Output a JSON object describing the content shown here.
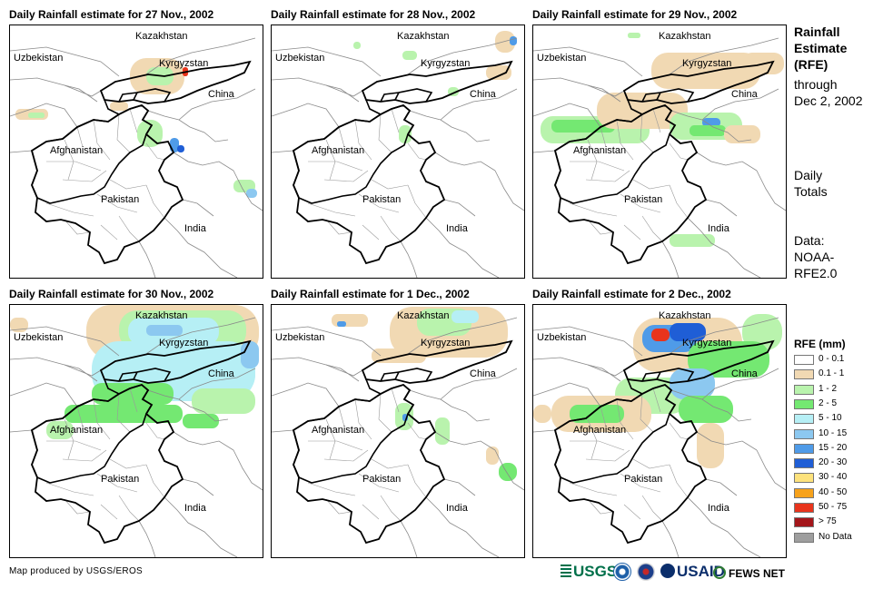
{
  "panels": [
    {
      "title": "Daily Rainfall estimate for 27 Nov., 2002",
      "intensity": "low"
    },
    {
      "title": "Daily Rainfall estimate for 28 Nov., 2002",
      "intensity": "minimal"
    },
    {
      "title": "Daily Rainfall estimate for 29 Nov., 2002",
      "intensity": "medium"
    },
    {
      "title": "Daily Rainfall estimate for 30 Nov., 2002",
      "intensity": "high"
    },
    {
      "title": "Daily Rainfall estimate for 1 Dec., 2002",
      "intensity": "low-medium"
    },
    {
      "title": "Daily Rainfall estimate for 2 Dec., 2002",
      "intensity": "medium-high"
    }
  ],
  "country_labels": {
    "kazakhstan": "Kazakhstan",
    "uzbekistan": "Uzbekistan",
    "kyrgyzstan": "Kyrgyzstan",
    "china": "China",
    "afghanistan": "Afghanistan",
    "pakistan": "Pakistan",
    "india": "India"
  },
  "side": {
    "title_lines": [
      "Rainfall",
      "Estimate",
      "(RFE)"
    ],
    "through_lines": [
      "through",
      "Dec 2, 2002"
    ],
    "daily_lines": [
      "Daily",
      "Totals"
    ],
    "data_lines": [
      "Data:",
      "NOAA-",
      "RFE2.0"
    ]
  },
  "legend": {
    "title": "RFE (mm)",
    "items": [
      {
        "label": "0 - 0.1",
        "color": "#ffffff"
      },
      {
        "label": "0.1 - 1",
        "color": "#f1d9b3"
      },
      {
        "label": "1 - 2",
        "color": "#b9f3ad"
      },
      {
        "label": "2 - 5",
        "color": "#74e872"
      },
      {
        "label": "5 - 10",
        "color": "#b6eff5"
      },
      {
        "label": "10 - 15",
        "color": "#8cc8f0"
      },
      {
        "label": "15 - 20",
        "color": "#4f9be8"
      },
      {
        "label": "20 - 30",
        "color": "#1f5ed6"
      },
      {
        "label": "30 - 40",
        "color": "#fde27c"
      },
      {
        "label": "40 - 50",
        "color": "#f7a21b"
      },
      {
        "label": "50 - 75",
        "color": "#e8341c"
      },
      {
        "label": "> 75",
        "color": "#a4161a"
      },
      {
        "label": "No Data",
        "color": "#9e9e9e"
      }
    ]
  },
  "credit": "Map produced by USGS/EROS",
  "logos": {
    "usgs": "USGS",
    "usaid": "USAID",
    "fews": "FEWS NET"
  }
}
